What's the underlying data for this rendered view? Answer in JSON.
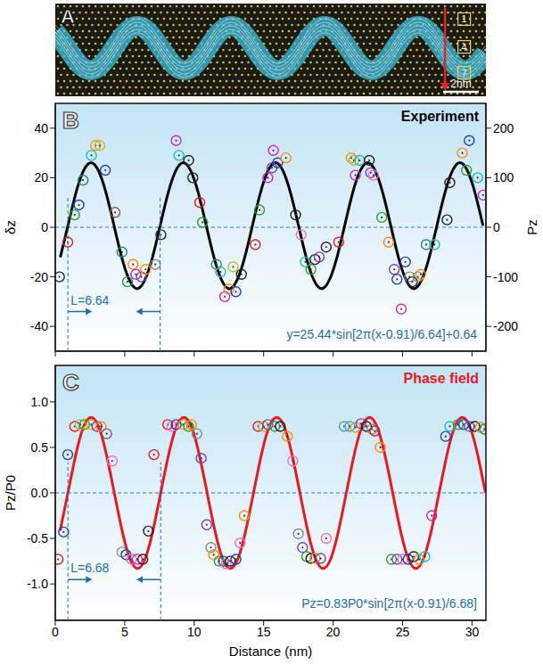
{
  "image_panel": {
    "label": "A",
    "box_labels": [
      "1",
      "4",
      "7"
    ],
    "scale_bar": "2nm"
  },
  "chart_data": [
    {
      "panel": "B",
      "type": "scatter",
      "title": "Experiment",
      "ylabel": "δz",
      "y2label": "Pz",
      "xlim": [
        0,
        31
      ],
      "xticks": [
        0,
        5,
        10,
        15,
        20,
        25,
        30
      ],
      "ylim": [
        -50,
        50
      ],
      "yticks": [
        -40,
        -20,
        0,
        20,
        40
      ],
      "y2lim": [
        -250,
        250
      ],
      "y2ticks": [
        -200,
        -100,
        0,
        100,
        200
      ],
      "tick_labels": "y",
      "grid": false,
      "baseline": 0,
      "period_marks": [
        0.91,
        7.55
      ],
      "period_label": "L=6.64",
      "equation": "y=25.44*sin[2π(x-0.91)/6.64]+0.64",
      "series": [
        {
          "type": "scatter",
          "marker": "circle",
          "x": [
            0.3,
            0.9,
            1.4,
            1.7,
            2.0,
            2.6,
            2.9,
            3.2,
            3.6,
            4.3,
            4.8,
            5.2,
            5.6,
            5.8,
            6.2,
            6.5,
            7.2,
            7.6,
            8.7,
            8.9,
            9.6,
            9.9,
            10.4,
            10.6,
            11.6,
            11.9,
            12.2,
            12.5,
            12.8,
            13.0,
            13.4,
            14.4,
            14.7,
            15.3,
            15.6,
            15.7,
            16.0,
            16.6,
            17.3,
            17.7,
            18.0,
            18.4,
            18.7,
            19.0,
            19.5,
            20.4,
            21.3,
            21.5,
            21.6,
            21.9,
            22.6,
            22.7,
            22.9,
            23.5,
            24.0,
            24.4,
            24.6,
            24.9,
            25.2,
            25.5,
            25.7,
            26.1,
            26.3,
            26.7,
            27.3,
            28.2,
            28.4,
            29.3,
            29.6,
            29.8,
            30.4,
            30.8
          ],
          "values": [
            -20,
            -6,
            5,
            9,
            19,
            29,
            33,
            33,
            23,
            6,
            -10,
            -22,
            -15,
            -19,
            -20,
            -17,
            -15,
            -3,
            35,
            29,
            27,
            20,
            10,
            2,
            -15,
            -18,
            -28,
            -25,
            -16,
            -26,
            -19,
            -7,
            7,
            20,
            24,
            31,
            26,
            28,
            5,
            -3,
            -14,
            -17,
            -13,
            -12,
            -8,
            -6,
            28,
            27,
            21,
            27,
            27,
            22,
            21,
            4,
            -6,
            -17,
            -21,
            -33,
            -14,
            -20,
            -22,
            -20,
            -19,
            -7,
            -7,
            3,
            18,
            30,
            23,
            35,
            20,
            13
          ],
          "colors": [
            "#222222",
            "#e41a1c",
            "#2ca02c",
            "#1f3fbf",
            "#2a8a6a",
            "#17becf",
            "#ff8c00",
            "#bcbd22",
            "#1f3fbf",
            "#8c564b",
            "#2a8a6a",
            "#2a8a6a",
            "#ff8c00",
            "#d020d0",
            "#7b3fbf",
            "#ff8c00",
            "#888888",
            "#222222",
            "#d020d0",
            "#17becf",
            "#222222",
            "#222222",
            "#e41a1c",
            "#2ca02c",
            "#2a8a6a",
            "#17becf",
            "#d020d0",
            "#ff8c00",
            "#bcbd22",
            "#1f3fbf",
            "#222222",
            "#e41a1c",
            "#2ca02c",
            "#d020d0",
            "#7b3fbf",
            "#d020d0",
            "#1f3fbf",
            "#ff8c00",
            "#222222",
            "#ff69b4",
            "#17becf",
            "#2ca02c",
            "#222222",
            "#7b3fbf",
            "#222222",
            "#e41a1c",
            "#ff8c00",
            "#bcbd22",
            "#d020d0",
            "#17becf",
            "#222222",
            "#7b3fbf",
            "#ff69b4",
            "#2ca02c",
            "#ff8c00",
            "#7b3fbf",
            "#1f3fbf",
            "#d020d0",
            "#1f3fbf",
            "#888888",
            "#222222",
            "#888888",
            "#ff8c00",
            "#2a8a6a",
            "#17becf",
            "#222222",
            "#222222",
            "#ff8c00",
            "#2ca02c",
            "#1f3fbf",
            "#17becf",
            "#d020d0"
          ]
        },
        {
          "type": "line",
          "color": "#000000",
          "line_style": "solid",
          "x": [
            0.36,
            0.91,
            1.46,
            2.02,
            2.57,
            3.12,
            3.68,
            4.23,
            4.78,
            5.34,
            5.89,
            6.44,
            7.0,
            7.55,
            8.1,
            8.66,
            9.21,
            9.76,
            10.32,
            10.87,
            11.42,
            11.98,
            12.53,
            13.08,
            13.64,
            14.19,
            14.74,
            15.3,
            15.85,
            16.4,
            16.96,
            17.51,
            18.06,
            18.62,
            19.17,
            19.72,
            20.28,
            20.83,
            21.38,
            21.94,
            22.49,
            23.04,
            23.6,
            24.15,
            24.7,
            25.26,
            25.81,
            26.36,
            26.92,
            27.47,
            28.02,
            28.58,
            29.13,
            29.68,
            30.24,
            30.79
          ],
          "values": [
            -12.08,
            0.64,
            13.36,
            22.67,
            26.08,
            22.67,
            13.36,
            0.64,
            -12.08,
            -21.39,
            -24.8,
            -21.39,
            -12.08,
            0.64,
            13.36,
            22.67,
            26.08,
            22.67,
            13.36,
            0.64,
            -12.08,
            -21.39,
            -24.8,
            -21.39,
            -12.08,
            0.64,
            13.36,
            22.67,
            26.08,
            22.67,
            13.36,
            0.64,
            -12.08,
            -21.39,
            -24.8,
            -21.39,
            -12.08,
            0.64,
            13.36,
            22.67,
            26.08,
            22.67,
            13.36,
            0.64,
            -12.08,
            -21.39,
            -24.8,
            -21.39,
            -12.08,
            0.64,
            13.36,
            22.67,
            26.08,
            22.67,
            13.36,
            0.64
          ]
        }
      ]
    },
    {
      "panel": "C",
      "type": "scatter",
      "title": "Phase field",
      "xlabel": "Distance (nm)",
      "ylabel": "Pz/P0",
      "xlim": [
        0,
        31
      ],
      "xticks": [
        0,
        5,
        10,
        15,
        20,
        25,
        30
      ],
      "ylim": [
        -1.4,
        1.4
      ],
      "yticks": [
        {
          "value": -1,
          "label": "-1.0"
        },
        {
          "value": -0.5,
          "label": "-0.5"
        },
        {
          "value": 0,
          "label": "0.0"
        },
        {
          "value": 0.5,
          "label": "0.5"
        },
        {
          "value": 1,
          "label": "1.0"
        }
      ],
      "grid": false,
      "baseline": 0,
      "period_marks": [
        0.91,
        7.59
      ],
      "period_label": "L=6.68",
      "equation": "Pz=0.83P0*sin[2π(x-0.91)/6.68]",
      "series": [
        {
          "type": "scatter",
          "marker": "circle",
          "x": [
            0.2,
            0.6,
            0.9,
            1.4,
            1.8,
            2.1,
            2.6,
            3.0,
            3.3,
            3.7,
            4.1,
            4.8,
            5.1,
            5.5,
            5.9,
            6.3,
            6.7,
            7.1,
            8.1,
            8.4,
            8.7,
            9.2,
            9.6,
            9.8,
            10.2,
            10.5,
            10.9,
            11.2,
            11.4,
            11.8,
            12.1,
            12.3,
            12.6,
            13.0,
            13.3,
            13.6,
            14.6,
            15.0,
            15.3,
            15.8,
            16.2,
            16.7,
            17.1,
            17.5,
            17.8,
            18.1,
            18.4,
            18.7,
            19.1,
            19.5,
            20.8,
            21.2,
            21.6,
            22.0,
            22.4,
            22.8,
            23.0,
            23.4,
            24.2,
            24.6,
            25.0,
            25.4,
            25.8,
            26.2,
            26.6,
            27.1,
            28.1,
            28.4,
            29.0,
            29.4,
            29.8,
            30.2,
            30.6,
            30.9
          ],
          "values": [
            -0.73,
            -0.43,
            0.42,
            0.73,
            0.75,
            0.75,
            0.75,
            0.73,
            0.73,
            0.65,
            0.35,
            -0.65,
            -0.68,
            -0.73,
            -0.73,
            -0.73,
            -0.42,
            0.42,
            0.75,
            0.73,
            0.75,
            0.75,
            0.73,
            0.75,
            0.65,
            0.38,
            -0.35,
            -0.6,
            -0.68,
            -0.75,
            -0.75,
            -0.78,
            -0.75,
            -0.73,
            -0.55,
            -0.25,
            0.73,
            0.73,
            0.75,
            0.73,
            0.73,
            0.62,
            0.35,
            -0.45,
            -0.6,
            -0.7,
            -0.72,
            -0.72,
            -0.72,
            -0.5,
            0.73,
            0.73,
            0.72,
            0.76,
            0.73,
            0.7,
            0.68,
            0.5,
            -0.73,
            -0.73,
            -0.73,
            -0.73,
            -0.7,
            -0.73,
            -0.7,
            -0.25,
            0.62,
            0.73,
            0.75,
            0.75,
            0.73,
            0.73,
            0.72,
            0.7
          ],
          "colors": [
            "#e41a1c",
            "#1f3fbf",
            "#1f3fbf",
            "#e41a1c",
            "#bcbd22",
            "#2ca02c",
            "#ff8c00",
            "#7b3fbf",
            "#ff8c00",
            "#8c564b",
            "#ff69b4",
            "#888888",
            "#1f3fbf",
            "#ff69b4",
            "#d020d0",
            "#222222",
            "#222222",
            "#e41a1c",
            "#e41a1c",
            "#ff69b4",
            "#1f3fbf",
            "#ff8c00",
            "#2ca02c",
            "#ff8c00",
            "#888888",
            "#7b3fbf",
            "#7b3fbf",
            "#888888",
            "#ff8c00",
            "#2ca02c",
            "#1f3fbf",
            "#ff69b4",
            "#222222",
            "#1f3fbf",
            "#ff69b4",
            "#ff8c00",
            "#e41a1c",
            "#bcbd22",
            "#7b3fbf",
            "#2ca02c",
            "#222222",
            "#ff8c00",
            "#ff69b4",
            "#888888",
            "#7b3fbf",
            "#2ca02c",
            "#222222",
            "#ff8c00",
            "#7b3fbf",
            "#ff69b4",
            "#888888",
            "#17becf",
            "#ff8c00",
            "#7b3fbf",
            "#222222",
            "#888888",
            "#e41a1c",
            "#ff8c00",
            "#2ca02c",
            "#7b3fbf",
            "#ff69b4",
            "#1f3fbf",
            "#222222",
            "#ff8c00",
            "#17becf",
            "#d020d0",
            "#1f3fbf",
            "#17becf",
            "#2ca02c",
            "#1f3fbf",
            "#7b3fbf",
            "#222222",
            "#ff8c00",
            "#2a8a6a"
          ]
        },
        {
          "type": "line",
          "color": "#e8191f",
          "line_style": "solid",
          "x": [
            0.35,
            0.91,
            1.47,
            2.02,
            2.58,
            3.14,
            3.69,
            4.25,
            4.81,
            5.36,
            5.92,
            6.48,
            7.03,
            7.59,
            8.15,
            8.7,
            9.26,
            9.82,
            10.37,
            10.93,
            11.49,
            12.04,
            12.6,
            13.16,
            13.71,
            14.27,
            14.83,
            15.38,
            15.94,
            16.5,
            17.05,
            17.61,
            18.17,
            18.72,
            19.28,
            19.84,
            20.39,
            20.95,
            21.51,
            22.06,
            22.62,
            23.18,
            23.73,
            24.29,
            24.85,
            25.4,
            25.96,
            26.52,
            27.07,
            27.63,
            28.19,
            28.74,
            29.3,
            29.86,
            30.41,
            30.97
          ],
          "values": [
            -0.415,
            0,
            0.415,
            0.719,
            0.83,
            0.719,
            0.415,
            0,
            -0.415,
            -0.719,
            -0.83,
            -0.719,
            -0.415,
            0,
            0.415,
            0.719,
            0.83,
            0.719,
            0.415,
            0,
            -0.415,
            -0.719,
            -0.83,
            -0.719,
            -0.415,
            0,
            0.415,
            0.719,
            0.83,
            0.719,
            0.415,
            0,
            -0.415,
            -0.719,
            -0.83,
            -0.719,
            -0.415,
            0,
            0.415,
            0.719,
            0.83,
            0.719,
            0.415,
            0,
            -0.415,
            -0.719,
            -0.83,
            -0.719,
            -0.415,
            0,
            0.415,
            0.719,
            0.83,
            0.719,
            0.415,
            0
          ]
        }
      ]
    }
  ]
}
